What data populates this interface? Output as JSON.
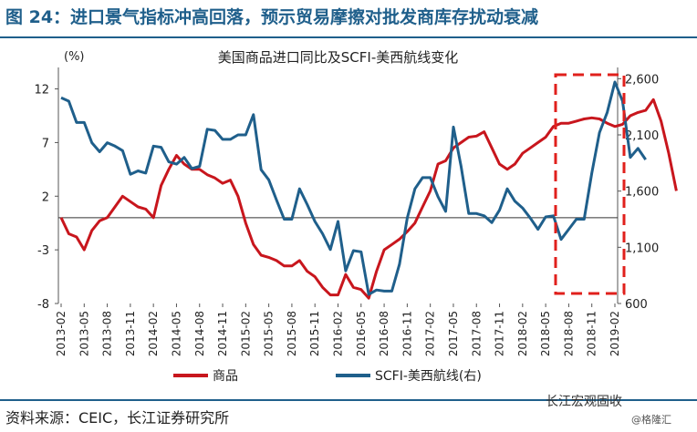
{
  "figure": {
    "title": "图 24：进口景气指标冲高回落，预示贸易摩擦对批发商库存扰动衰减",
    "source": "资料来源：CEIC，长江证券研究所",
    "watermark": "长江宏观固收",
    "watermark_sub": "@格隆汇"
  },
  "colors": {
    "title": "#1f5f8b",
    "series_goods": "#c8161d",
    "series_scfi": "#1f5f8b",
    "highlight_box": "#e0201c"
  },
  "chart_data": {
    "type": "line",
    "title": "美国商品进口同比及SCFI-美西航线变化",
    "ylabel": "(%)",
    "ylim": [
      -8,
      14
    ],
    "yticks": [
      -8,
      -3,
      2,
      7,
      12
    ],
    "y2lim": [
      600,
      2700
    ],
    "y2ticks": [
      600,
      1100,
      1600,
      2100,
      2600
    ],
    "y2ticklabels": [
      "600",
      "1,100",
      "1,600",
      "2,100",
      "2,600"
    ],
    "xticklabels": [
      "2013-02",
      "2013-05",
      "2013-08",
      "2013-11",
      "2014-02",
      "2014-05",
      "2014-08",
      "2014-11",
      "2015-02",
      "2015-05",
      "2015-08",
      "2015-11",
      "2016-02",
      "2016-05",
      "2016-08",
      "2016-11",
      "2017-02",
      "2017-05",
      "2017-08",
      "2017-11",
      "2018-02",
      "2018-05",
      "2018-08",
      "2018-11",
      "2019-02"
    ],
    "highlight": {
      "from": "2018-07",
      "to": "2019-02"
    },
    "series": [
      {
        "name": "商品",
        "axis": "left",
        "start": "2013-02",
        "values": [
          0,
          -1.5,
          -1.8,
          -3,
          -1.2,
          -0.3,
          0,
          1,
          2,
          1.5,
          1,
          0.8,
          0,
          3,
          4.5,
          5.8,
          5,
          4.5,
          4.5,
          4,
          3.7,
          3.2,
          3.5,
          2,
          -0.5,
          -2.5,
          -3.5,
          -3.7,
          -4,
          -4.5,
          -4.5,
          -4,
          -5,
          -5.5,
          -6.5,
          -7.2,
          -7.2,
          -5.3,
          -6.5,
          -6.7,
          -7.5,
          -5,
          -3,
          -2.5,
          -2,
          -1.3,
          -0.5,
          1,
          2.5,
          5,
          5.3,
          6.5,
          7,
          7.5,
          7.6,
          8,
          6.5,
          5,
          4.5,
          5,
          6,
          6.5,
          7,
          7.5,
          8.5,
          8.8,
          8.8,
          9,
          9.2,
          9.3,
          9.2,
          8.8,
          8.5,
          8.7,
          9.5,
          9.8,
          10,
          11,
          9,
          6,
          2.5
        ]
      },
      {
        "name": "SCFI-美西航线(右)",
        "axis": "right",
        "start": "2013-02",
        "values": [
          2430,
          2400,
          2210,
          2210,
          2030,
          1950,
          2030,
          2000,
          1960,
          1750,
          1780,
          1760,
          2000,
          1990,
          1860,
          1840,
          1900,
          1800,
          1820,
          2150,
          2140,
          2060,
          2060,
          2100,
          2100,
          2280,
          1790,
          1700,
          1520,
          1350,
          1350,
          1620,
          1480,
          1330,
          1220,
          1080,
          1330,
          890,
          1070,
          1060,
          680,
          720,
          710,
          710,
          950,
          1360,
          1620,
          1720,
          1720,
          1550,
          1420,
          2170,
          1820,
          1400,
          1400,
          1380,
          1320,
          1430,
          1620,
          1510,
          1450,
          1360,
          1260,
          1370,
          1380,
          1170,
          1260,
          1350,
          1350,
          1760,
          2120,
          2300,
          2570,
          2400,
          1900,
          1980,
          1880
        ]
      }
    ]
  }
}
